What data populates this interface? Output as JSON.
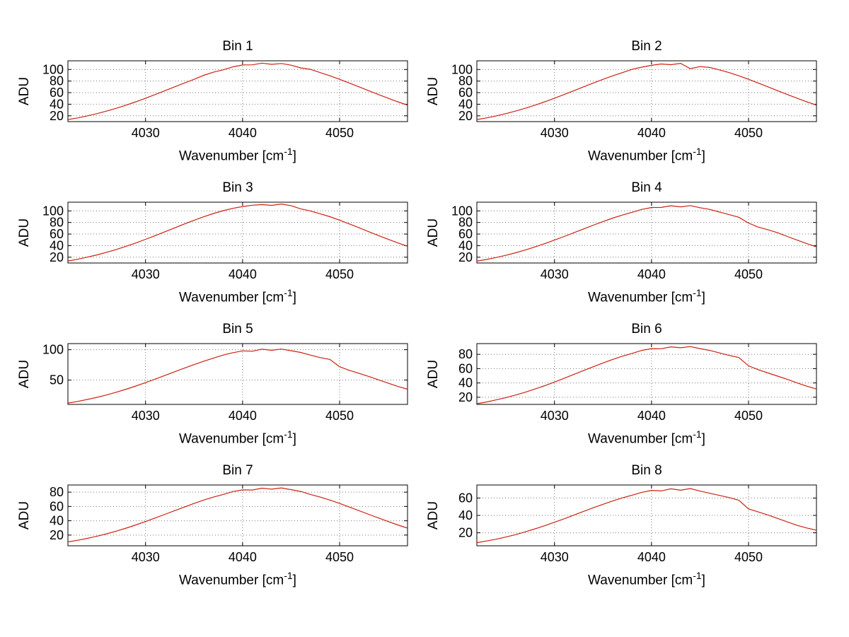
{
  "figure": {
    "background": "#ffffff"
  },
  "style": {
    "line_color": "#cc2211",
    "axis_color": "#000000",
    "grid_color": "#777777",
    "tick_label_color": "#000000"
  },
  "labels": {
    "xlabel_full": "Wavenumber [cm⁻¹]",
    "xlabel_main": "Wavenumber [cm",
    "xlabel_sup": "-1",
    "xlabel_close": "]",
    "ylabel": "ADU"
  },
  "chart_data": [
    {
      "type": "line",
      "title": "Bin 1",
      "ylabel": "ADU",
      "xlabel": "Wavenumber [cm⁻¹]",
      "x_start": 4022,
      "x_step": 1,
      "xlim": [
        4022,
        4057
      ],
      "ylim": [
        10,
        115
      ],
      "xticks": [
        4030,
        4040,
        4050
      ],
      "yticks": [
        20,
        40,
        60,
        80,
        100
      ],
      "grid": true,
      "values": [
        13.5,
        16.4,
        19.9,
        23.8,
        28.2,
        33.1,
        38.5,
        44.2,
        50.4,
        56.8,
        63.4,
        70.1,
        76.7,
        83.0,
        90.0,
        95.4,
        99.4,
        104.5,
        107.8,
        108.0,
        111.0,
        108.9,
        110.3,
        107.4,
        102.8,
        100.2,
        94.6,
        89.1,
        83.0,
        76.7,
        70.1,
        63.4,
        56.8,
        50.4,
        44.2,
        38.5
      ]
    },
    {
      "type": "line",
      "title": "Bin 2",
      "ylabel": "ADU",
      "xlabel": "Wavenumber [cm⁻¹]",
      "x_start": 4022,
      "x_step": 1,
      "xlim": [
        4022,
        4057
      ],
      "ylim": [
        10,
        115
      ],
      "xticks": [
        4030,
        4040,
        4050
      ],
      "yticks": [
        20,
        40,
        60,
        80,
        100
      ],
      "grid": true,
      "values": [
        13.5,
        16.4,
        19.9,
        23.8,
        28.2,
        33.1,
        38.5,
        44.2,
        50.4,
        56.8,
        63.4,
        70.1,
        76.7,
        83.0,
        89.1,
        94.6,
        100.2,
        104.0,
        107.2,
        109.5,
        108.3,
        110.6,
        101.5,
        105.0,
        103.5,
        99.4,
        94.6,
        89.1,
        83.0,
        76.7,
        70.1,
        63.4,
        56.8,
        50.4,
        44.2,
        38.5
      ]
    },
    {
      "type": "line",
      "title": "Bin 3",
      "ylabel": "ADU",
      "xlabel": "Wavenumber [cm⁻¹]",
      "x_start": 4022,
      "x_step": 1,
      "xlim": [
        4022,
        4057
      ],
      "ylim": [
        10,
        115
      ],
      "xticks": [
        4030,
        4040,
        4050
      ],
      "yticks": [
        20,
        40,
        60,
        80,
        100
      ],
      "grid": true,
      "values": [
        13.6,
        16.5,
        20.1,
        24.0,
        28.5,
        33.4,
        38.9,
        44.6,
        50.9,
        57.3,
        64.0,
        70.7,
        77.4,
        83.8,
        89.9,
        95.5,
        100.3,
        104.4,
        107.6,
        109.8,
        110.9,
        109.5,
        111.8,
        109.0,
        103.5,
        99.9,
        95.0,
        90.0,
        84.0,
        77.5,
        70.9,
        64.1,
        57.4,
        51.0,
        44.7,
        38.9
      ]
    },
    {
      "type": "line",
      "title": "Bin 4",
      "ylabel": "ADU",
      "xlabel": "Wavenumber [cm⁻¹]",
      "x_start": 4022,
      "x_step": 1,
      "xlim": [
        4022,
        4057
      ],
      "ylim": [
        10,
        115
      ],
      "xticks": [
        4030,
        4040,
        4050
      ],
      "yticks": [
        20,
        40,
        60,
        80,
        100
      ],
      "grid": true,
      "values": [
        13.2,
        16.1,
        19.5,
        23.3,
        27.7,
        32.5,
        37.8,
        43.4,
        49.5,
        55.8,
        62.2,
        68.8,
        75.3,
        81.5,
        87.5,
        92.8,
        97.6,
        102.5,
        105.9,
        106.0,
        108.9,
        107.0,
        109.2,
        105.5,
        102.6,
        98.0,
        93.5,
        89.0,
        79.0,
        72.0,
        67.5,
        62.2,
        55.8,
        49.5,
        43.4,
        37.8
      ]
    },
    {
      "type": "line",
      "title": "Bin 5",
      "ylabel": "ADU",
      "xlabel": "Wavenumber [cm⁻¹]",
      "x_start": 4022,
      "x_step": 1,
      "xlim": [
        4022,
        4057
      ],
      "ylim": [
        10,
        110
      ],
      "xticks": [
        4030,
        4040,
        4050
      ],
      "yticks": [
        50,
        100
      ],
      "grid": true,
      "values": [
        12.2,
        14.9,
        18.1,
        21.6,
        25.6,
        30.1,
        35.0,
        40.2,
        45.8,
        51.6,
        57.6,
        63.7,
        69.7,
        75.5,
        81.0,
        86.0,
        91.2,
        95.0,
        98.0,
        97.5,
        100.8,
        99.0,
        101.0,
        98.2,
        95.5,
        91.0,
        87.0,
        84.0,
        72.0,
        66.0,
        61.0,
        56.0,
        50.5,
        45.0,
        39.5,
        35.0
      ]
    },
    {
      "type": "line",
      "title": "Bin 6",
      "ylabel": "ADU",
      "xlabel": "Wavenumber [cm⁻¹]",
      "x_start": 4022,
      "x_step": 1,
      "xlim": [
        4022,
        4057
      ],
      "ylim": [
        10,
        95
      ],
      "xticks": [
        4030,
        4040,
        4050
      ],
      "yticks": [
        20,
        40,
        60,
        80
      ],
      "grid": true,
      "values": [
        11.0,
        13.4,
        16.3,
        19.5,
        23.1,
        27.1,
        31.5,
        36.2,
        41.2,
        46.5,
        51.9,
        57.3,
        62.7,
        67.9,
        72.9,
        77.4,
        81.3,
        85.5,
        88.0,
        87.8,
        90.5,
        89.2,
        90.8,
        88.0,
        85.5,
        82.0,
        78.5,
        75.5,
        64.0,
        58.5,
        54.0,
        49.5,
        45.0,
        40.0,
        35.5,
        31.5
      ]
    },
    {
      "type": "line",
      "title": "Bin 7",
      "ylabel": "ADU",
      "xlabel": "Wavenumber [cm⁻¹]",
      "x_start": 4022,
      "x_step": 1,
      "xlim": [
        4022,
        4057
      ],
      "ylim": [
        5,
        90
      ],
      "xticks": [
        4030,
        4040,
        4050
      ],
      "yticks": [
        20,
        40,
        60,
        80
      ],
      "grid": true,
      "values": [
        10.4,
        12.7,
        15.4,
        18.4,
        21.8,
        25.6,
        29.7,
        34.2,
        38.9,
        43.9,
        49.0,
        54.1,
        59.2,
        64.2,
        68.9,
        73.1,
        76.8,
        80.8,
        83.2,
        83.0,
        85.6,
        84.2,
        85.9,
        83.5,
        81.0,
        76.8,
        73.1,
        68.9,
        64.2,
        59.2,
        54.1,
        49.0,
        43.9,
        38.9,
        34.2,
        29.7
      ]
    },
    {
      "type": "line",
      "title": "Bin 8",
      "ylabel": "ADU",
      "xlabel": "Wavenumber [cm⁻¹]",
      "x_start": 4022,
      "x_step": 1,
      "xlim": [
        4022,
        4057
      ],
      "ylim": [
        5,
        75
      ],
      "xticks": [
        4030,
        4040,
        4050
      ],
      "yticks": [
        20,
        40,
        60
      ],
      "grid": true,
      "values": [
        8.6,
        10.5,
        12.6,
        15.1,
        17.9,
        21.1,
        24.5,
        28.1,
        32.1,
        36.1,
        40.3,
        44.6,
        48.8,
        52.8,
        56.6,
        60.2,
        63.3,
        66.5,
        68.8,
        68.2,
        70.6,
        69.0,
        70.9,
        68.0,
        65.5,
        63.0,
        60.5,
        57.5,
        47.5,
        44.0,
        40.5,
        36.5,
        32.5,
        28.5,
        25.5,
        23.0
      ]
    }
  ]
}
